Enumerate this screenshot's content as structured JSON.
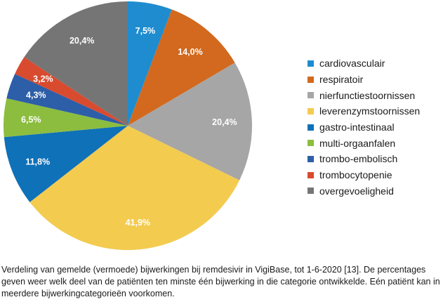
{
  "chart_data": {
    "type": "pie",
    "categories": [
      "cardiovasculair",
      "respiratoir",
      "nierfunctiestoornissen",
      "leverenzymstoornissen",
      "gastro-intestinaal",
      "multi-orgaanfalen",
      "trombo-embolisch",
      "trombocytopenie",
      "overgevoeligheid"
    ],
    "values": [
      7.5,
      14.0,
      20.4,
      41.9,
      11.8,
      6.5,
      4.3,
      3.2,
      20.4
    ],
    "data_labels": [
      "7,5%",
      "14,0%",
      "20,4%",
      "41,9%",
      "11,8%",
      "6,5%",
      "4,3%",
      "3,2%",
      "20,4%"
    ],
    "colors": [
      "#1f8ccf",
      "#d2691e",
      "#a6a6a6",
      "#f3cb4f",
      "#0f71b8",
      "#8cbd3f",
      "#2d5ea8",
      "#d84b2f",
      "#757575"
    ],
    "start_angle": "12 o'clock",
    "direction": "clockwise",
    "legend_placement": "right",
    "title": "",
    "grid": false
  },
  "caption": "Verdeling van gemelde (vermoede) bijwerkingen bij remdesivir in VigiBase, tot 1-6-2020 [13]. De percentages geven weer welk deel van de patiënten ten minste één bijwerking in die categorie ontwikkelde. Eén patiënt kan in meerdere bijwerkingcategorieën voorkomen."
}
